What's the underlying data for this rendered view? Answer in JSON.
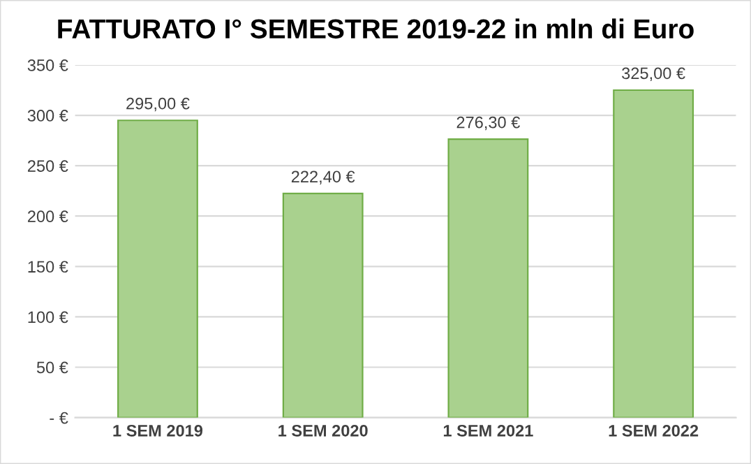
{
  "chart_data": {
    "type": "bar",
    "title": "FATTURATO I° SEMESTRE 2019-22 in mln di Euro",
    "categories": [
      "1 SEM 2019",
      "1 SEM 2020",
      "1 SEM 2021",
      "1 SEM 2022"
    ],
    "values": [
      295.0,
      222.4,
      276.3,
      325.0
    ],
    "value_labels": [
      "295,00 €",
      "222,40 €",
      "276,30 €",
      "325,00 €"
    ],
    "color": "#a9d18e",
    "ylim": [
      0,
      350
    ],
    "yticks": [
      {
        "value": 0,
        "label": "- €"
      },
      {
        "value": 50,
        "label": "50 €"
      },
      {
        "value": 100,
        "label": "100 €"
      },
      {
        "value": 150,
        "label": "150 €"
      },
      {
        "value": 200,
        "label": "200 €"
      },
      {
        "value": 250,
        "label": "250 €"
      },
      {
        "value": 300,
        "label": "300 €"
      },
      {
        "value": 350,
        "label": "350 €"
      }
    ],
    "grid": "y"
  }
}
